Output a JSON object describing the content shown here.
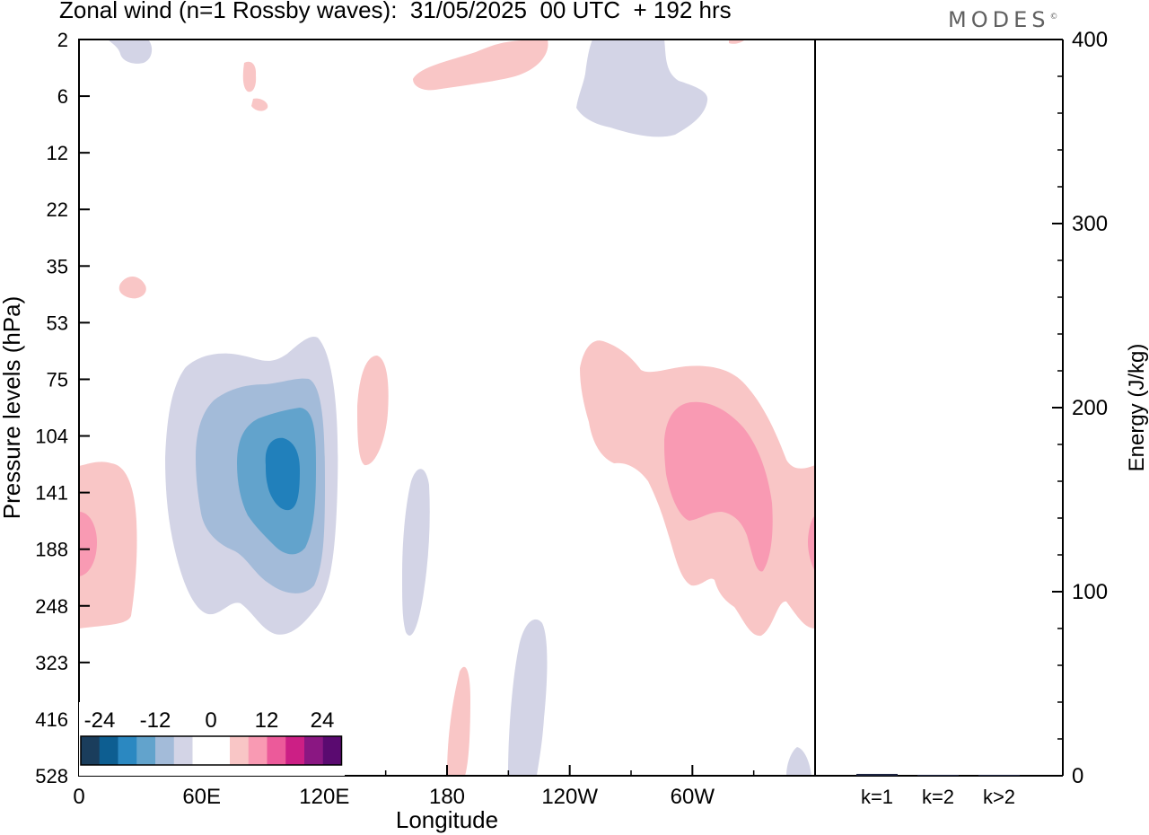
{
  "chart_data": {
    "type": "heatmap",
    "title": "Zonal wind (n=1 Rossby waves):  31/05/2025  00 UTC  + 192 hrs",
    "watermark": "MODES",
    "xlabel": "Longitude",
    "ylabel": "Pressure levels (hPa)",
    "x_ticks": [
      "0",
      "60E",
      "120E",
      "180",
      "120W",
      "60W"
    ],
    "y_ticks": [
      "2",
      "6",
      "12",
      "22",
      "35",
      "53",
      "75",
      "104",
      "141",
      "188",
      "248",
      "323",
      "416",
      "528"
    ],
    "colorbar": {
      "tick_labels": [
        "-24",
        "-12",
        "0",
        "12",
        "24"
      ],
      "colors": [
        "#1a3d5c",
        "#0d5e91",
        "#2b88c1",
        "#62a3cc",
        "#a3bbd9",
        "#d3d4e6",
        "#ffffff",
        "#ffffff",
        "#f9c6c6",
        "#f99ab3",
        "#ec5a9a",
        "#cc1f85",
        "#8a1782",
        "#5a0a70"
      ]
    },
    "energy_panel": {
      "ylabel": "Energy (J/kg)",
      "y_ticks": [
        "0",
        "100",
        "200",
        "300",
        "400"
      ],
      "ylim": [
        0,
        400
      ],
      "categories": [
        "k=1",
        "k=2",
        "k>2"
      ],
      "values": [
        1.0,
        0.5,
        0.5
      ]
    }
  }
}
